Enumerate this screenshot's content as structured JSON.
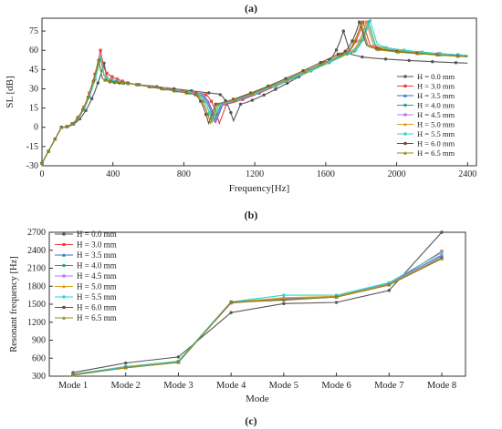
{
  "labels": {
    "a": "(a)",
    "b": "(b)",
    "c": "(c)"
  },
  "colors": [
    "#555555",
    "#e8403a",
    "#2f6fd6",
    "#1aa67a",
    "#b27ae8",
    "#d9a21b",
    "#2fd3d3",
    "#6b4b3e",
    "#8d8d1c"
  ],
  "chart_data": [
    {
      "type": "line",
      "xlabel": "Frequency[Hz]",
      "ylabel": "SL [dB]",
      "xlim": [
        0,
        2450
      ],
      "ylim": [
        -30,
        85
      ],
      "xticks": [
        "0",
        "400",
        "800",
        "1200",
        "1600",
        "2000",
        "2400"
      ],
      "yticks": [
        "-30",
        "-15",
        "0",
        "15",
        "30",
        "45",
        "60",
        "75"
      ],
      "legend": "right",
      "series": [
        {
          "name": "H = 0.0 mm",
          "peaks": [
            [
              350,
              50
            ],
            [
              1700,
              75
            ]
          ],
          "dip": [
            1080,
            5
          ],
          "end": 50
        },
        {
          "name": "H = 3.0 mm",
          "peaks": [
            [
              330,
              60
            ],
            [
              1810,
              82
            ]
          ],
          "dip": [
            1000,
            3
          ],
          "end": 56
        },
        {
          "name": "H = 3.5 mm",
          "peaks": [
            [
              330,
              55
            ],
            [
              1830,
              82
            ]
          ],
          "dip": [
            980,
            4
          ],
          "end": 56
        },
        {
          "name": "H = 4.0 mm",
          "peaks": [
            [
              330,
              54
            ],
            [
              1840,
              82
            ]
          ],
          "dip": [
            970,
            5
          ],
          "end": 55
        },
        {
          "name": "H = 4.5 mm",
          "peaks": [
            [
              330,
              55
            ],
            [
              1830,
              82
            ]
          ],
          "dip": [
            975,
            4
          ],
          "end": 56
        },
        {
          "name": "H = 5.0 mm",
          "peaks": [
            [
              330,
              55
            ],
            [
              1830,
              82
            ]
          ],
          "dip": [
            960,
            4
          ],
          "end": 56
        },
        {
          "name": "H = 5.5 mm",
          "peaks": [
            [
              330,
              54
            ],
            [
              1850,
              83
            ]
          ],
          "dip": [
            960,
            5
          ],
          "end": 56
        },
        {
          "name": "H = 6.0 mm",
          "peaks": [
            [
              320,
              52
            ],
            [
              1790,
              82
            ]
          ],
          "dip": [
            940,
            3
          ],
          "end": 55
        },
        {
          "name": "H = 6.5 mm",
          "peaks": [
            [
              320,
              52
            ],
            [
              1800,
              81
            ]
          ],
          "dip": [
            950,
            3
          ],
          "end": 55
        }
      ]
    },
    {
      "type": "line",
      "xlabel": "Mode",
      "ylabel": "Resonant frequency [Hz]",
      "categories": [
        "Mode 1",
        "Mode 2",
        "Mode 3",
        "Mode 4",
        "Mode 5",
        "Mode 6",
        "Mode 7",
        "Mode 8"
      ],
      "ylim": [
        300,
        2700
      ],
      "yticks": [
        "300",
        "600",
        "900",
        "1200",
        "1500",
        "1800",
        "2100",
        "2400",
        "2700"
      ],
      "legend": "top-left",
      "series": [
        {
          "name": "H = 0.0 mm",
          "values": [
            360,
            520,
            620,
            1360,
            1510,
            1530,
            1730,
            2700
          ]
        },
        {
          "name": "H = 3.0 mm",
          "values": [
            330,
            450,
            540,
            1520,
            1590,
            1620,
            1830,
            2380
          ]
        },
        {
          "name": "H = 3.5 mm",
          "values": [
            330,
            450,
            540,
            1530,
            1600,
            1620,
            1840,
            2320
          ]
        },
        {
          "name": "H = 4.0 mm",
          "values": [
            330,
            460,
            545,
            1540,
            1600,
            1630,
            1850,
            2300
          ]
        },
        {
          "name": "H = 4.5 mm",
          "values": [
            330,
            460,
            545,
            1530,
            1600,
            1630,
            1840,
            2310
          ]
        },
        {
          "name": "H = 5.0 mm",
          "values": [
            320,
            450,
            540,
            1530,
            1610,
            1630,
            1830,
            2270
          ]
        },
        {
          "name": "H = 5.5 mm",
          "values": [
            330,
            460,
            550,
            1540,
            1650,
            1650,
            1860,
            2360
          ]
        },
        {
          "name": "H = 6.0 mm",
          "values": [
            320,
            440,
            530,
            1530,
            1570,
            1620,
            1820,
            2270
          ]
        },
        {
          "name": "H = 6.5 mm",
          "values": [
            320,
            440,
            530,
            1530,
            1580,
            1620,
            1820,
            2260
          ]
        }
      ]
    }
  ]
}
